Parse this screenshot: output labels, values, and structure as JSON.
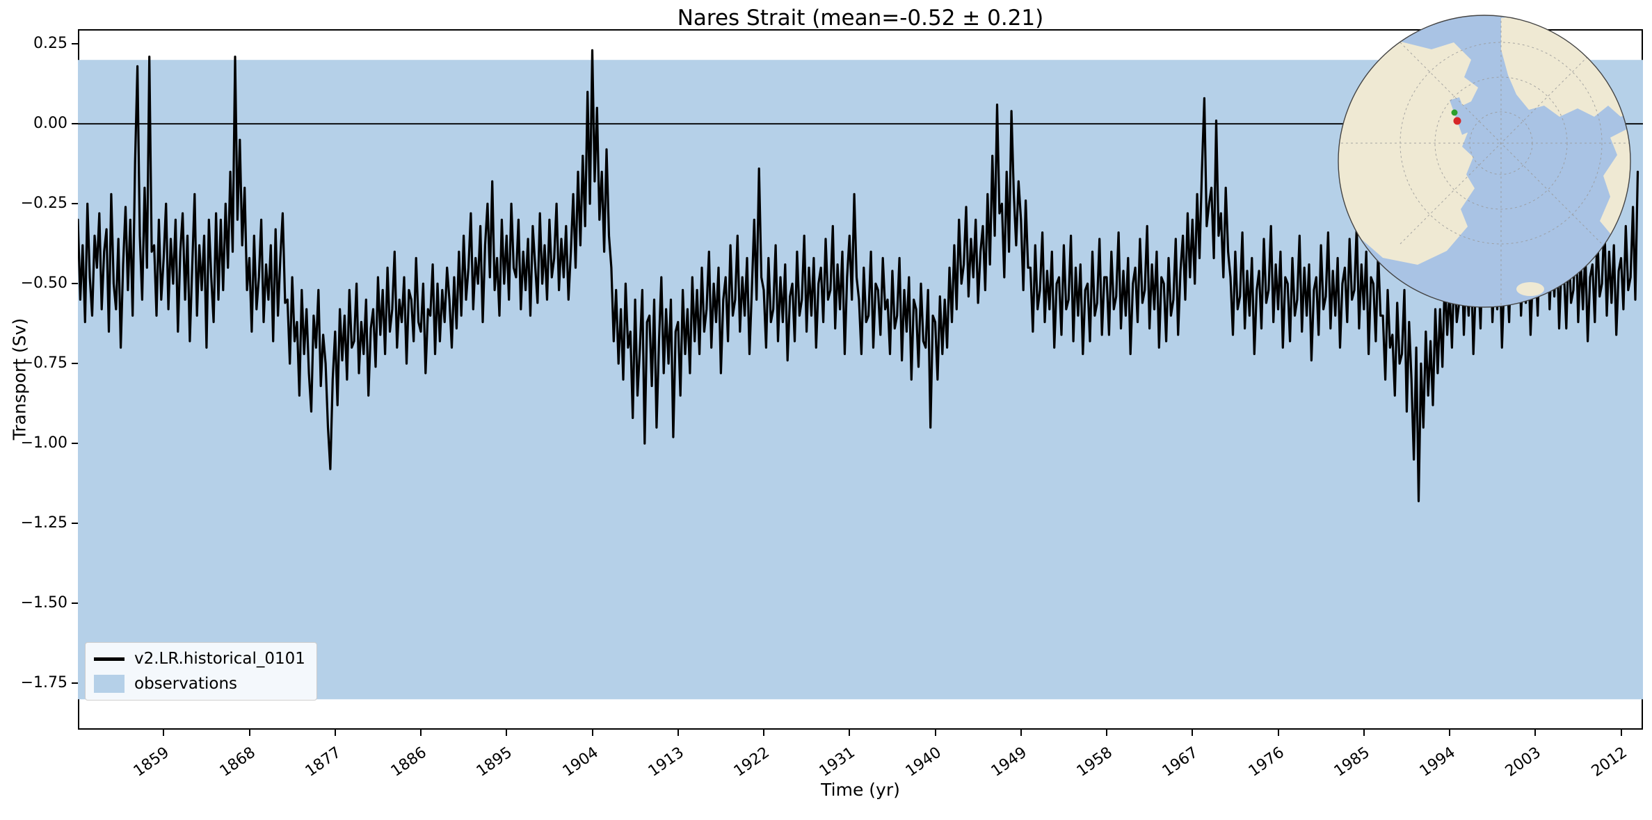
{
  "title": "Nares Strait (mean=-0.52 ± 0.21)",
  "axes": {
    "xlabel": "Time (yr)",
    "ylabel": "Transport (Sv)"
  },
  "legend": {
    "items": [
      {
        "type": "line",
        "label": "v2.LR.historical_0101",
        "color": "#000000"
      },
      {
        "type": "patch",
        "label": "observations",
        "color": "#b5d0e8"
      }
    ]
  },
  "inset": {
    "description": "polar stereographic map of Arctic with site marker",
    "ocean": "#a9c3e4",
    "land": "#efe9d3",
    "graticule": "#999999",
    "outline": "#444444",
    "marker_green": "#2ca02c",
    "marker_red": "#d62728"
  },
  "chart_data": {
    "type": "line",
    "title": "Nares Strait (mean=-0.52 ± 0.21)",
    "xlabel": "Time (yr)",
    "ylabel": "Transport (Sv)",
    "series_name": "v2.LR.historical_0101",
    "mean": -0.52,
    "std": 0.21,
    "grid": false,
    "legend_position": "lower left",
    "xlim": [
      1850,
      2014.3
    ],
    "ylim": [
      -1.895,
      0.296
    ],
    "x_ticks": [
      1859,
      1868,
      1877,
      1886,
      1895,
      1904,
      1913,
      1922,
      1931,
      1940,
      1949,
      1958,
      1967,
      1976,
      1985,
      1994,
      2003,
      2012
    ],
    "y_ticks": [
      0.25,
      0.0,
      -0.25,
      -0.5,
      -0.75,
      -1.0,
      -1.25,
      -1.5,
      -1.75
    ],
    "y_tick_labels": [
      "0.25",
      "0.00",
      "−0.25",
      "−0.50",
      "−0.75",
      "−1.00",
      "−1.25",
      "−1.50",
      "−1.75"
    ],
    "zero_line": 0.0,
    "obs_band": {
      "label": "observations",
      "top": 0.2,
      "bottom": -1.8,
      "color": "#b5d0e8"
    },
    "line_color": "#000000",
    "x_start": 1850,
    "x_step": 0.25,
    "values": [
      -0.3,
      -0.55,
      -0.38,
      -0.62,
      -0.25,
      -0.48,
      -0.6,
      -0.35,
      -0.45,
      -0.28,
      -0.58,
      -0.4,
      -0.33,
      -0.65,
      -0.22,
      -0.5,
      -0.58,
      -0.36,
      -0.7,
      -0.44,
      -0.26,
      -0.52,
      -0.3,
      -0.6,
      -0.12,
      0.18,
      -0.35,
      -0.55,
      -0.2,
      -0.45,
      0.21,
      -0.4,
      -0.38,
      -0.6,
      -0.3,
      -0.55,
      -0.42,
      -0.25,
      -0.58,
      -0.36,
      -0.5,
      -0.3,
      -0.65,
      -0.4,
      -0.28,
      -0.55,
      -0.35,
      -0.68,
      -0.45,
      -0.22,
      -0.6,
      -0.38,
      -0.52,
      -0.35,
      -0.7,
      -0.3,
      -0.48,
      -0.62,
      -0.28,
      -0.55,
      -0.3,
      -0.52,
      -0.25,
      -0.45,
      -0.15,
      -0.4,
      0.21,
      -0.3,
      -0.05,
      -0.38,
      -0.2,
      -0.52,
      -0.42,
      -0.65,
      -0.35,
      -0.58,
      -0.48,
      -0.3,
      -0.62,
      -0.44,
      -0.55,
      -0.38,
      -0.68,
      -0.33,
      -0.6,
      -0.42,
      -0.28,
      -0.56,
      -0.55,
      -0.75,
      -0.48,
      -0.68,
      -0.62,
      -0.85,
      -0.52,
      -0.72,
      -0.58,
      -0.78,
      -0.9,
      -0.6,
      -0.7,
      -0.52,
      -0.82,
      -0.66,
      -0.75,
      -0.95,
      -1.08,
      -0.8,
      -0.65,
      -0.88,
      -0.58,
      -0.74,
      -0.6,
      -0.8,
      -0.52,
      -0.7,
      -0.68,
      -0.5,
      -0.78,
      -0.62,
      -0.72,
      -0.55,
      -0.85,
      -0.64,
      -0.58,
      -0.76,
      -0.48,
      -0.66,
      -0.52,
      -0.72,
      -0.45,
      -0.65,
      -0.58,
      -0.4,
      -0.7,
      -0.55,
      -0.62,
      -0.48,
      -0.75,
      -0.52,
      -0.55,
      -0.68,
      -0.42,
      -0.62,
      -0.65,
      -0.5,
      -0.78,
      -0.58,
      -0.6,
      -0.44,
      -0.72,
      -0.5,
      -0.68,
      -0.52,
      -0.62,
      -0.45,
      -0.55,
      -0.7,
      -0.48,
      -0.64,
      -0.4,
      -0.6,
      -0.35,
      -0.55,
      -0.45,
      -0.28,
      -0.58,
      -0.42,
      -0.5,
      -0.32,
      -0.62,
      -0.38,
      -0.25,
      -0.48,
      -0.18,
      -0.52,
      -0.42,
      -0.6,
      -0.3,
      -0.5,
      -0.35,
      -0.55,
      -0.25,
      -0.45,
      -0.48,
      -0.3,
      -0.58,
      -0.4,
      -0.52,
      -0.36,
      -0.6,
      -0.32,
      -0.44,
      -0.56,
      -0.28,
      -0.5,
      -0.38,
      -0.55,
      -0.3,
      -0.48,
      -0.42,
      -0.25,
      -0.52,
      -0.36,
      -0.48,
      -0.32,
      -0.55,
      -0.4,
      -0.22,
      -0.45,
      -0.15,
      -0.38,
      -0.1,
      -0.32,
      0.1,
      -0.25,
      0.23,
      -0.18,
      0.05,
      -0.3,
      -0.15,
      -0.4,
      -0.08,
      -0.35,
      -0.45,
      -0.68,
      -0.52,
      -0.75,
      -0.58,
      -0.8,
      -0.5,
      -0.7,
      -0.65,
      -0.92,
      -0.55,
      -0.85,
      -0.7,
      -0.52,
      -1.0,
      -0.62,
      -0.6,
      -0.82,
      -0.55,
      -0.95,
      -0.68,
      -0.48,
      -0.78,
      -0.58,
      -0.75,
      -0.55,
      -0.98,
      -0.65,
      -0.62,
      -0.85,
      -0.52,
      -0.72,
      -0.58,
      -0.78,
      -0.48,
      -0.68,
      -0.52,
      -0.72,
      -0.45,
      -0.65,
      -0.58,
      -0.4,
      -0.7,
      -0.5,
      -0.62,
      -0.45,
      -0.78,
      -0.55,
      -0.48,
      -0.68,
      -0.38,
      -0.6,
      -0.55,
      -0.35,
      -0.65,
      -0.48,
      -0.6,
      -0.42,
      -0.72,
      -0.52,
      -0.3,
      -0.55,
      -0.14,
      -0.48,
      -0.52,
      -0.7,
      -0.42,
      -0.62,
      -0.58,
      -0.38,
      -0.68,
      -0.48,
      -0.62,
      -0.44,
      -0.74,
      -0.54,
      -0.5,
      -0.68,
      -0.4,
      -0.6,
      -0.55,
      -0.35,
      -0.65,
      -0.45,
      -0.6,
      -0.42,
      -0.7,
      -0.5,
      -0.45,
      -0.62,
      -0.36,
      -0.55,
      -0.52,
      -0.32,
      -0.64,
      -0.44,
      -0.58,
      -0.4,
      -0.72,
      -0.48,
      -0.35,
      -0.55,
      -0.22,
      -0.48,
      -0.55,
      -0.72,
      -0.45,
      -0.62,
      -0.6,
      -0.4,
      -0.7,
      -0.5,
      -0.52,
      -0.66,
      -0.42,
      -0.58,
      -0.55,
      -0.72,
      -0.46,
      -0.64,
      -0.6,
      -0.42,
      -0.74,
      -0.52,
      -0.65,
      -0.48,
      -0.8,
      -0.55,
      -0.58,
      -0.76,
      -0.5,
      -0.68,
      -0.7,
      -0.52,
      -0.95,
      -0.6,
      -0.62,
      -0.8,
      -0.54,
      -0.72,
      -0.55,
      -0.7,
      -0.45,
      -0.62,
      -0.38,
      -0.58,
      -0.3,
      -0.5,
      -0.44,
      -0.26,
      -0.54,
      -0.36,
      -0.48,
      -0.3,
      -0.56,
      -0.4,
      -0.32,
      -0.52,
      -0.22,
      -0.44,
      -0.1,
      -0.35,
      0.06,
      -0.28,
      -0.25,
      -0.48,
      -0.15,
      -0.4,
      0.04,
      -0.22,
      -0.38,
      -0.18,
      -0.3,
      -0.52,
      -0.24,
      -0.45,
      -0.45,
      -0.65,
      -0.38,
      -0.58,
      -0.52,
      -0.34,
      -0.62,
      -0.46,
      -0.58,
      -0.4,
      -0.7,
      -0.5,
      -0.48,
      -0.66,
      -0.38,
      -0.58,
      -0.55,
      -0.35,
      -0.68,
      -0.45,
      -0.6,
      -0.44,
      -0.72,
      -0.52,
      -0.5,
      -0.68,
      -0.4,
      -0.6,
      -0.56,
      -0.36,
      -0.66,
      -0.48,
      -0.48,
      -0.66,
      -0.4,
      -0.58,
      -0.54,
      -0.34,
      -0.64,
      -0.46,
      -0.6,
      -0.42,
      -0.72,
      -0.5,
      -0.45,
      -0.62,
      -0.36,
      -0.56,
      -0.52,
      -0.32,
      -0.64,
      -0.44,
      -0.58,
      -0.4,
      -0.7,
      -0.48,
      -0.5,
      -0.68,
      -0.42,
      -0.6,
      -0.55,
      -0.36,
      -0.66,
      -0.46,
      -0.35,
      -0.55,
      -0.28,
      -0.48,
      -0.3,
      -0.5,
      -0.22,
      -0.42,
      -0.15,
      0.08,
      -0.32,
      -0.25,
      -0.2,
      -0.42,
      0.01,
      -0.35,
      -0.28,
      -0.48,
      -0.2,
      -0.4,
      -0.48,
      -0.66,
      -0.4,
      -0.58,
      -0.54,
      -0.34,
      -0.64,
      -0.46,
      -0.6,
      -0.42,
      -0.72,
      -0.52,
      -0.46,
      -0.64,
      -0.36,
      -0.56,
      -0.52,
      -0.32,
      -0.62,
      -0.44,
      -0.58,
      -0.4,
      -0.7,
      -0.48,
      -0.5,
      -0.68,
      -0.42,
      -0.6,
      -0.55,
      -0.35,
      -0.65,
      -0.45,
      -0.6,
      -0.44,
      -0.74,
      -0.52,
      -0.48,
      -0.66,
      -0.38,
      -0.58,
      -0.54,
      -0.34,
      -0.64,
      -0.46,
      -0.6,
      -0.42,
      -0.7,
      -0.5,
      -0.45,
      -0.62,
      -0.36,
      -0.55,
      -0.52,
      -0.32,
      -0.64,
      -0.44,
      -0.58,
      -0.4,
      -0.72,
      -0.48,
      -0.5,
      -0.68,
      -0.4,
      -0.6,
      -0.6,
      -0.8,
      -0.52,
      -0.7,
      -0.66,
      -0.85,
      -0.56,
      -0.75,
      -0.72,
      -0.52,
      -0.9,
      -0.62,
      -0.8,
      -1.05,
      -0.7,
      -1.18,
      -0.75,
      -0.95,
      -0.65,
      -0.85,
      -0.68,
      -0.88,
      -0.58,
      -0.78,
      -0.58,
      -0.76,
      -0.48,
      -0.66,
      -0.52,
      -0.7,
      -0.44,
      -0.62,
      -0.56,
      -0.36,
      -0.66,
      -0.46,
      -0.6,
      -0.42,
      -0.72,
      -0.5,
      -0.46,
      -0.64,
      -0.36,
      -0.56,
      -0.52,
      -0.32,
      -0.62,
      -0.44,
      -0.58,
      -0.4,
      -0.7,
      -0.48,
      -0.44,
      -0.62,
      -0.36,
      -0.54,
      -0.5,
      -0.3,
      -0.6,
      -0.42,
      -0.56,
      -0.38,
      -0.66,
      -0.46,
      -0.42,
      -0.6,
      -0.34,
      -0.52,
      -0.48,
      -0.28,
      -0.58,
      -0.4,
      -0.54,
      -0.36,
      -0.64,
      -0.44,
      -0.46,
      -0.64,
      -0.38,
      -0.56,
      -0.52,
      -0.32,
      -0.62,
      -0.42,
      -0.58,
      -0.4,
      -0.68,
      -0.48,
      -0.44,
      -0.62,
      -0.34,
      -0.54,
      -0.5,
      -0.3,
      -0.6,
      -0.4,
      -0.56,
      -0.38,
      -0.66,
      -0.46,
      -0.42,
      -0.58,
      -0.32,
      -0.52,
      -0.48,
      -0.26,
      -0.55,
      -0.15
    ]
  }
}
